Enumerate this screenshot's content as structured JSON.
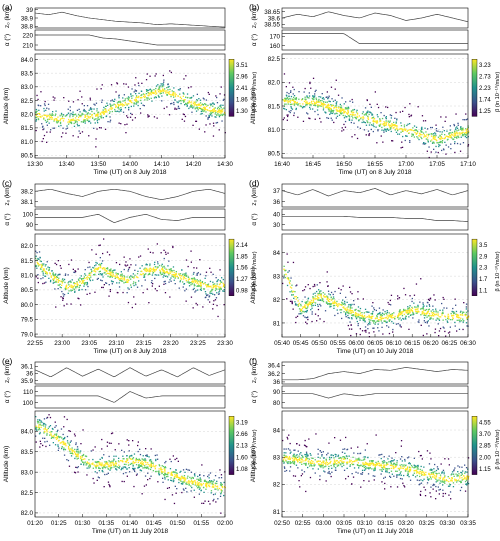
{
  "chart_data": [
    {
      "type": "scatter",
      "panel_label": "(a)",
      "top_series": [
        {
          "ylabel": "z₀ (km)",
          "yticks": [
            38.8,
            38.9,
            39.0
          ],
          "ylim": [
            38.78,
            39.02
          ],
          "y": [
            38.96,
            38.94,
            38.97,
            38.93,
            38.9,
            38.88,
            38.86,
            38.85,
            38.84,
            38.82,
            38.83,
            38.82,
            38.81,
            38.8,
            38.79
          ]
        },
        {
          "ylabel": "α (°)",
          "yticks": [
            210,
            220
          ],
          "ylim": [
            205,
            225
          ],
          "y": [
            220,
            220,
            220,
            220,
            220,
            217,
            216,
            214,
            212,
            210,
            210,
            210,
            210,
            210,
            210
          ]
        }
      ],
      "ylabel": "Altitude (km)",
      "xlabel": "Time (UT) on 8 July 2018",
      "xticks": [
        "13:30",
        "13:40",
        "13:50",
        "14:00",
        "14:10",
        "14:20",
        "14:30"
      ],
      "yticks": [
        80.5,
        81.0,
        81.5,
        82.0,
        82.5,
        83.0,
        83.5,
        84.0
      ],
      "ylim": [
        80.4,
        84.2
      ],
      "band_center": [
        82.0,
        81.9,
        81.8,
        81.9,
        82.0,
        82.3,
        82.5,
        82.7,
        82.9,
        82.7,
        82.4,
        82.2,
        82.1
      ],
      "colorbar_label": "β (in 10⁻¹⁰/m/sr)",
      "colorbar_ticks": [
        "3.51",
        "2.96",
        "2.41",
        "1.86",
        "1.30"
      ]
    },
    {
      "type": "scatter",
      "panel_label": "(b)",
      "top_series": [
        {
          "ylabel": "z₀ (km)",
          "yticks": [
            38.55,
            38.6,
            38.65
          ],
          "ylim": [
            38.52,
            38.68
          ],
          "y": [
            38.6,
            38.63,
            38.61,
            38.65,
            38.62,
            38.6,
            38.64,
            38.62,
            38.58,
            38.6,
            38.63,
            38.6,
            38.57
          ]
        },
        {
          "ylabel": "α (°)",
          "yticks": [
            160,
            170
          ],
          "ylim": [
            155,
            177
          ],
          "y": [
            173,
            173,
            173,
            173,
            173,
            162,
            162,
            162,
            162,
            162,
            162,
            162,
            162
          ]
        }
      ],
      "ylabel": "Altitude (km)",
      "xlabel": "Time (UT) on 8 July 2018",
      "xticks": [
        "16:40",
        "16:45",
        "16:50",
        "16:55",
        "17:00",
        "17:05",
        "17:10"
      ],
      "yticks": [
        80.5,
        81.0,
        81.5,
        82.0,
        82.5
      ],
      "ylim": [
        80.4,
        82.6
      ],
      "band_center": [
        81.6,
        81.6,
        81.6,
        81.5,
        81.4,
        81.3,
        81.2,
        81.1,
        81.0,
        80.9,
        80.8,
        80.9,
        81.0
      ],
      "colorbar_label": "β (in 10⁻¹⁰/m/sr)",
      "colorbar_ticks": [
        "3.23",
        "2.73",
        "2.23",
        "1.74",
        "1.25"
      ]
    },
    {
      "type": "scatter",
      "panel_label": "(c)",
      "top_series": [
        {
          "ylabel": "z₀ (km)",
          "yticks": [
            38.1,
            38.2
          ],
          "ylim": [
            38.05,
            38.27
          ],
          "y": [
            38.2,
            38.22,
            38.18,
            38.15,
            38.2,
            38.22,
            38.2,
            38.15,
            38.12,
            38.15,
            38.2,
            38.22,
            38.18
          ]
        },
        {
          "ylabel": "α (°)",
          "yticks": [
            90,
            100
          ],
          "ylim": [
            85,
            105
          ],
          "y": [
            97,
            97,
            97,
            97,
            100,
            92,
            97,
            100,
            95,
            94,
            97,
            97,
            97
          ]
        }
      ],
      "ylabel": "Altitude (km)",
      "xlabel": "Time (UT) on 8 July 2018",
      "xticks": [
        "22:55",
        "23:00",
        "23:05",
        "23:10",
        "23:15",
        "23:20",
        "23:25",
        "23:30"
      ],
      "yticks": [
        79.0,
        79.5,
        80.0,
        80.5,
        81.0,
        81.5,
        82.0
      ],
      "ylim": [
        78.9,
        82.4
      ],
      "band_center": [
        81.5,
        81.0,
        80.6,
        80.8,
        81.3,
        81.0,
        80.8,
        81.2,
        81.2,
        81.0,
        80.8,
        80.6,
        80.7
      ],
      "colorbar_label": "β (in 10⁻¹⁰/m/sr)",
      "colorbar_ticks": [
        "2.14",
        "1.85",
        "1.56",
        "1.27",
        "0.98"
      ]
    },
    {
      "type": "scatter",
      "panel_label": "(d)",
      "top_series": [
        {
          "ylabel": "z₀ (km)",
          "yticks": [
            36,
            37
          ],
          "ylim": [
            35.5,
            37.6
          ],
          "y": [
            37.0,
            36.6,
            37.1,
            36.5,
            37.0,
            36.8,
            37.2,
            36.6,
            37.0,
            36.7,
            37.1,
            36.6,
            37.0
          ]
        },
        {
          "ylabel": "α (°)",
          "yticks": [
            30,
            40
          ],
          "ylim": [
            25,
            45
          ],
          "y": [
            38,
            38,
            38,
            38,
            38,
            37,
            37,
            37,
            36,
            36,
            34,
            34,
            33
          ]
        }
      ],
      "ylabel": "Altitude (km)",
      "xlabel": "Time (UT) on 10 July 2018",
      "xticks": [
        "05:40",
        "05:45",
        "05:50",
        "05:55",
        "06:00",
        "06:05",
        "06:10",
        "06:15",
        "06:20",
        "06:25",
        "06:30"
      ],
      "yticks": [
        81,
        82,
        83,
        84
      ],
      "ylim": [
        80.4,
        84.8
      ],
      "band_center": [
        83.4,
        81.6,
        82.2,
        81.8,
        81.4,
        81.2,
        81.3,
        81.6,
        81.4,
        81.3,
        81.3
      ],
      "colorbar_label": "β (in 10⁻¹⁰/m/sr)",
      "colorbar_ticks": [
        "3.5",
        "2.9",
        "2.3",
        "1.7",
        "1.1"
      ]
    },
    {
      "type": "scatter",
      "panel_label": "(e)",
      "top_series": [
        {
          "ylabel": "z₀ (km)",
          "yticks": [
            35.9,
            36.0,
            36.1
          ],
          "ylim": [
            35.85,
            36.16
          ],
          "y": [
            36.05,
            35.95,
            36.08,
            35.96,
            36.06,
            35.95,
            36.08,
            35.96,
            36.05,
            35.95,
            36.08,
            35.97,
            36.05
          ]
        },
        {
          "ylabel": "α (°)",
          "yticks": [
            100,
            110
          ],
          "ylim": [
            95,
            115
          ],
          "y": [
            106,
            106,
            106,
            106,
            106,
            100,
            110,
            104,
            106,
            106,
            106,
            106,
            106
          ]
        }
      ],
      "ylabel": "Altitude (km)",
      "xlabel": "Time (UT) on 11 July 2018",
      "xticks": [
        "01:20",
        "01:25",
        "01:30",
        "01:35",
        "01:40",
        "01:45",
        "01:50",
        "01:55",
        "02:00"
      ],
      "yticks": [
        82.0,
        82.5,
        83.0,
        83.5,
        84.0
      ],
      "ylim": [
        81.9,
        84.5
      ],
      "band_center": [
        84.2,
        83.9,
        83.5,
        83.2,
        83.2,
        83.3,
        83.2,
        83.0,
        82.8,
        82.7,
        82.6
      ],
      "colorbar_label": "β (in 10⁻¹⁰/m/sr)",
      "colorbar_ticks": [
        "3.19",
        "2.66",
        "2.13",
        "1.60",
        "1.08"
      ]
    },
    {
      "type": "scatter",
      "panel_label": "(f)",
      "top_series": [
        {
          "ylabel": "z₀ (km)",
          "yticks": [
            36.0,
            36.2,
            36.4
          ],
          "ylim": [
            35.95,
            36.48
          ],
          "y": [
            36.05,
            36.05,
            36.08,
            36.2,
            36.25,
            36.2,
            36.3,
            36.28,
            36.35,
            36.3,
            36.25,
            36.3,
            36.28
          ]
        },
        {
          "ylabel": "α (°)",
          "yticks": [
            80,
            90
          ],
          "ylim": [
            75,
            95
          ],
          "y": [
            88,
            88,
            88,
            84,
            88,
            86,
            88,
            88,
            88,
            88,
            88,
            88,
            88
          ]
        }
      ],
      "ylabel": "Altitude (km)",
      "xlabel": "Time (UT) on 11 July 2018",
      "xticks": [
        "02:50",
        "02:55",
        "03:00",
        "03:05",
        "03:10",
        "03:15",
        "03:20",
        "03:25",
        "03:30",
        "03:35"
      ],
      "yticks": [
        81,
        82,
        83,
        84
      ],
      "ylim": [
        80.8,
        84.7
      ],
      "band_center": [
        83.0,
        82.9,
        82.8,
        82.9,
        82.8,
        82.7,
        82.6,
        82.4,
        82.2,
        82.3
      ],
      "colorbar_label": "β (in 10⁻¹⁰/m/sr)",
      "colorbar_ticks": [
        "4.55",
        "3.70",
        "2.85",
        "2.00",
        "1.15"
      ]
    }
  ],
  "colors": {
    "colormap": [
      "#440154",
      "#3b528b",
      "#21918c",
      "#5ec962",
      "#fde725"
    ],
    "line": "#444444",
    "gridline": "#cccccc"
  }
}
